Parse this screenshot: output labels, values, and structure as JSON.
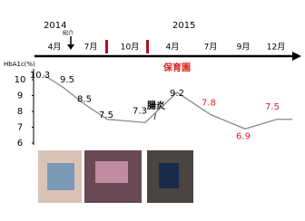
{
  "chart_data": {
    "type": "line",
    "years": [
      "2014",
      "2015"
    ],
    "months": [
      "4月",
      "7月",
      "10月",
      "4月",
      "7月",
      "9月",
      "12月"
    ],
    "event_label": "紹介",
    "annotation": "腸炎",
    "period_label": "保育園",
    "y_label": "HbA1c(%)",
    "categories": [
      null,
      null,
      null,
      null,
      null,
      null,
      null,
      null,
      null
    ],
    "values": [
      10.3,
      9.5,
      8.5,
      7.5,
      7.3,
      9.2,
      7.8,
      6.9,
      7.5
    ],
    "label_colors": [
      "#000000",
      "#000000",
      "#000000",
      "#000000",
      "#000000",
      "#000000",
      "#e02020",
      "#e02020",
      "#e02020"
    ],
    "color": "#888888",
    "ylim": [
      6,
      10.7
    ],
    "yticks": [
      6,
      7,
      8,
      9,
      10
    ]
  }
}
